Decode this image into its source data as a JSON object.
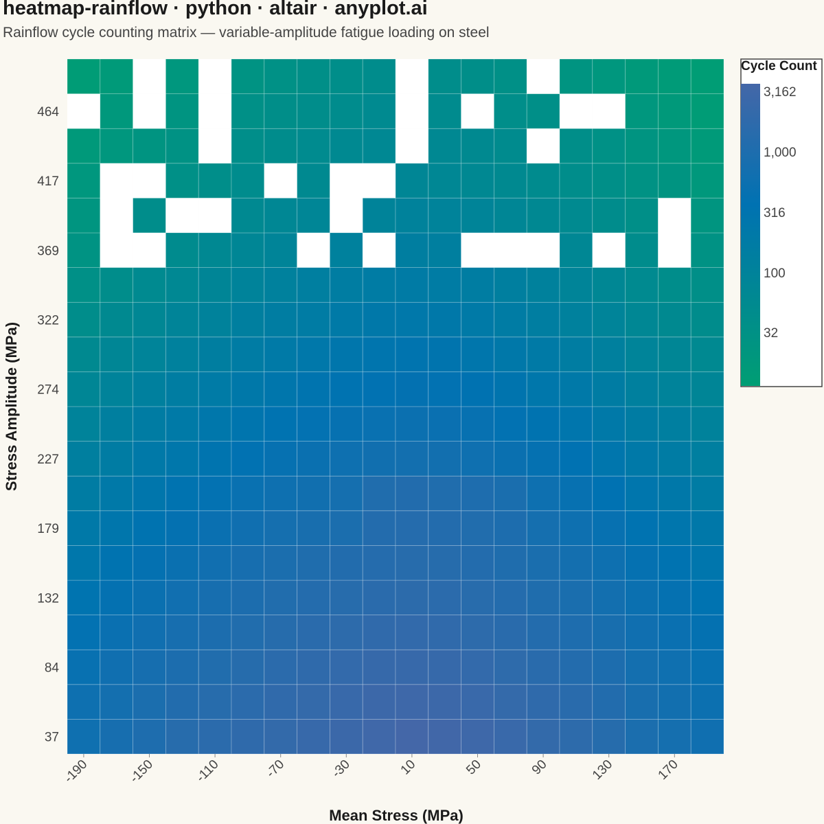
{
  "title": "heatmap-rainflow · python · altair · anyplot.ai",
  "subtitle": "Rainflow cycle counting matrix — variable-amplitude fatigue loading on steel",
  "chart_data": {
    "type": "heatmap",
    "xlabel": "Mean Stress (MPa)",
    "ylabel": "Stress Amplitude (MPa)",
    "x": [
      -190,
      -170,
      -150,
      -130,
      -110,
      -90,
      -70,
      -50,
      -30,
      -10,
      10,
      30,
      50,
      70,
      90,
      110,
      130,
      150,
      170,
      190
    ],
    "x_tick_labels": [
      "-190",
      "-150",
      "-110",
      "-70",
      "-30",
      "10",
      "50",
      "90",
      "130",
      "170"
    ],
    "y": [
      37,
      61,
      84,
      108,
      132,
      155,
      179,
      203,
      227,
      250,
      274,
      298,
      322,
      345,
      369,
      393,
      417,
      440,
      464,
      488
    ],
    "y_tick_labels": [
      "37",
      "84",
      "132",
      "179",
      "227",
      "274",
      "322",
      "369",
      "417",
      "464"
    ],
    "color_scale": {
      "title": "Cycle Count",
      "type": "log",
      "domain": [
        10,
        3162
      ],
      "range_colors": [
        "#009e73",
        "#0072b2",
        "#4467a8"
      ],
      "ticks": [
        32,
        100,
        316,
        1000,
        3162
      ],
      "tick_labels": [
        "32",
        "100",
        "316",
        "1,000",
        "3,162"
      ]
    },
    "empty_cell_color": "#ffffff",
    "values": [
      [
        520,
        700,
        880,
        1180,
        1350,
        1550,
        1800,
        2050,
        2350,
        2750,
        3162,
        2900,
        2600,
        2200,
        1800,
        1450,
        1150,
        800,
        650,
        540
      ],
      [
        500,
        620,
        780,
        1000,
        1180,
        1350,
        1600,
        1850,
        2100,
        2400,
        2600,
        2400,
        2150,
        1850,
        1550,
        1250,
        1000,
        720,
        580,
        480
      ],
      [
        420,
        540,
        660,
        820,
        980,
        1150,
        1350,
        1550,
        1750,
        1950,
        2050,
        1950,
        1750,
        1500,
        1280,
        1050,
        850,
        620,
        520,
        420
      ],
      [
        350,
        440,
        540,
        680,
        820,
        980,
        1150,
        1300,
        1450,
        1600,
        1700,
        1600,
        1450,
        1250,
        1050,
        880,
        720,
        540,
        440,
        360
      ],
      [
        280,
        360,
        450,
        560,
        680,
        820,
        960,
        1080,
        1200,
        1330,
        1420,
        1350,
        1230,
        1060,
        900,
        750,
        600,
        460,
        370,
        300
      ],
      [
        220,
        290,
        360,
        450,
        560,
        680,
        800,
        900,
        1000,
        1100,
        1180,
        1130,
        1030,
        900,
        760,
        630,
        500,
        380,
        300,
        240
      ],
      [
        180,
        230,
        290,
        360,
        440,
        540,
        640,
        720,
        800,
        1050,
        1100,
        1050,
        980,
        850,
        640,
        510,
        400,
        300,
        240,
        190
      ],
      [
        140,
        180,
        230,
        290,
        350,
        430,
        500,
        570,
        640,
        950,
        1000,
        950,
        880,
        770,
        510,
        400,
        310,
        240,
        190,
        150
      ],
      [
        110,
        140,
        180,
        220,
        270,
        330,
        390,
        450,
        510,
        570,
        610,
        580,
        520,
        450,
        380,
        310,
        240,
        185,
        150,
        115
      ],
      [
        85,
        110,
        140,
        170,
        210,
        255,
        300,
        345,
        390,
        430,
        460,
        440,
        395,
        340,
        290,
        235,
        185,
        140,
        115,
        90
      ],
      [
        65,
        85,
        105,
        130,
        160,
        195,
        230,
        265,
        300,
        330,
        355,
        340,
        305,
        260,
        220,
        180,
        140,
        105,
        85,
        70
      ],
      [
        50,
        65,
        80,
        100,
        120,
        145,
        170,
        200,
        225,
        250,
        270,
        260,
        230,
        195,
        165,
        135,
        105,
        80,
        65,
        52
      ],
      [
        38,
        50,
        62,
        76,
        92,
        110,
        130,
        150,
        170,
        190,
        205,
        195,
        175,
        150,
        125,
        100,
        80,
        62,
        50,
        40
      ],
      [
        30,
        38,
        48,
        58,
        70,
        85,
        100,
        115,
        130,
        145,
        155,
        148,
        132,
        112,
        95,
        78,
        62,
        48,
        38,
        32
      ],
      [
        24,
        null,
        null,
        45,
        55,
        65,
        75,
        null,
        100,
        null,
        120,
        112,
        null,
        null,
        null,
        60,
        null,
        40,
        null,
        26
      ],
      [
        20,
        null,
        38,
        null,
        null,
        52,
        60,
        68,
        null,
        82,
        90,
        85,
        75,
        65,
        56,
        48,
        40,
        32,
        null,
        20
      ],
      [
        18,
        null,
        null,
        30,
        36,
        42,
        null,
        50,
        null,
        null,
        65,
        60,
        55,
        50,
        45,
        38,
        32,
        26,
        22,
        16
      ],
      [
        15,
        18,
        22,
        26,
        null,
        35,
        40,
        46,
        52,
        58,
        null,
        55,
        50,
        45,
        null,
        34,
        28,
        22,
        18,
        14
      ],
      [
        null,
        16,
        null,
        22,
        null,
        30,
        34,
        38,
        42,
        48,
        null,
        45,
        null,
        36,
        32,
        null,
        null,
        18,
        15,
        12
      ],
      [
        12,
        14,
        null,
        18,
        null,
        24,
        28,
        32,
        36,
        40,
        null,
        38,
        34,
        30,
        null,
        22,
        18,
        15,
        13,
        11
      ]
    ]
  }
}
